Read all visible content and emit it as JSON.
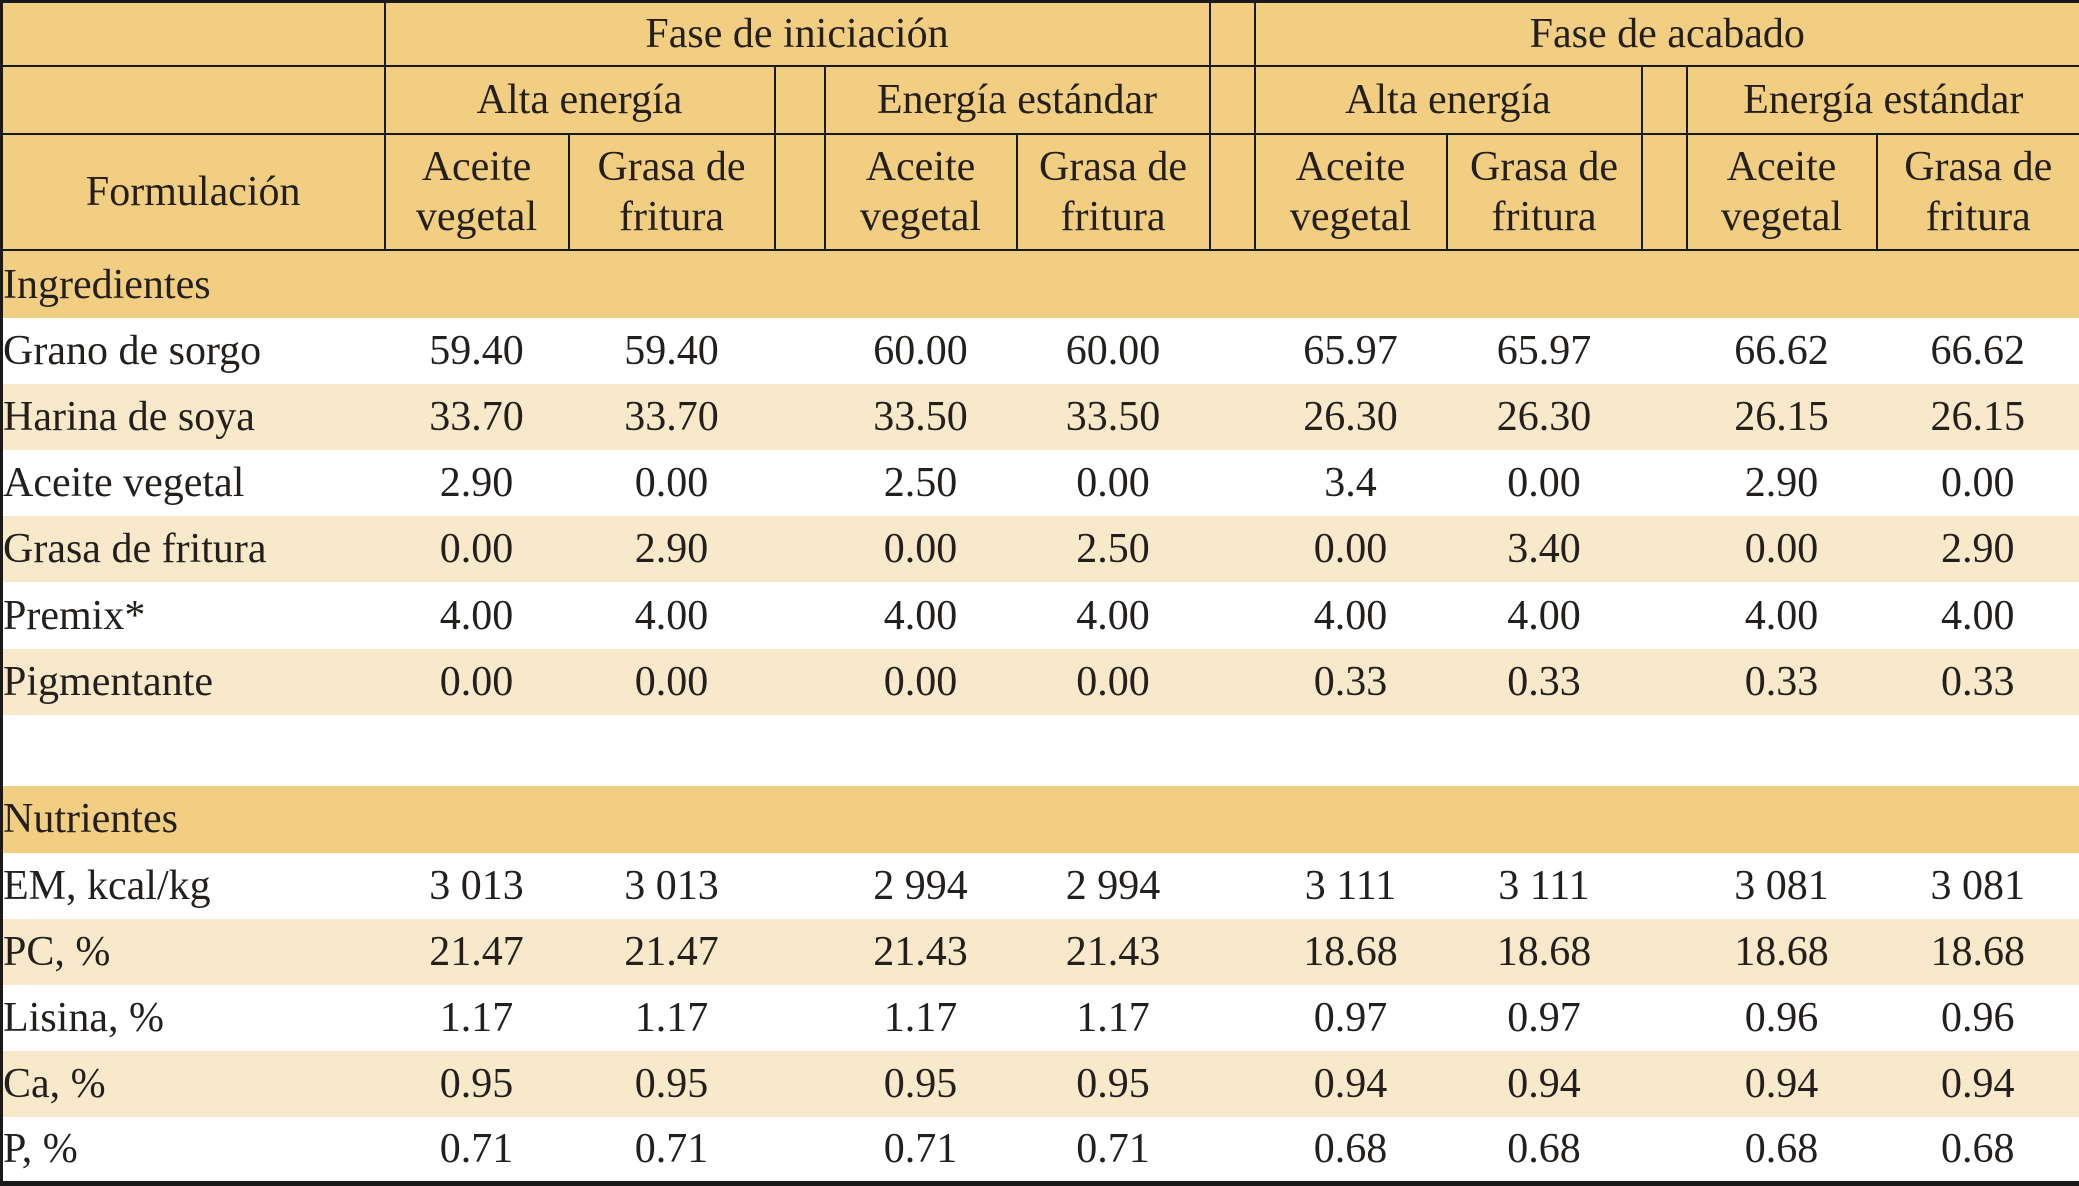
{
  "header": {
    "corner_label": "Formulación",
    "phases": [
      {
        "label": "Fase de iniciación",
        "energy_groups": [
          {
            "label": "Alta energía",
            "columns": [
              "Aceite vegetal",
              "Grasa de fritura"
            ]
          },
          {
            "label": "Energía estándar",
            "columns": [
              "Aceite vegetal",
              "Grasa de fritura"
            ]
          }
        ]
      },
      {
        "label": "Fase de acabado",
        "energy_groups": [
          {
            "label": "Alta energía",
            "columns": [
              "Aceite vegetal",
              "Grasa de fritura"
            ]
          },
          {
            "label": "Energía estándar",
            "columns": [
              "Aceite vegetal",
              "Grasa de fritura"
            ]
          }
        ]
      }
    ]
  },
  "body": {
    "sections": [
      {
        "title": "Ingredientes",
        "rows": [
          {
            "label": "Grano de sorgo",
            "values": [
              "59.40",
              "59.40",
              "60.00",
              "60.00",
              "65.97",
              "65.97",
              "66.62",
              "66.62"
            ]
          },
          {
            "label": "Harina de soya",
            "values": [
              "33.70",
              "33.70",
              "33.50",
              "33.50",
              "26.30",
              "26.30",
              "26.15",
              "26.15"
            ]
          },
          {
            "label": "Aceite vegetal",
            "values": [
              "2.90",
              "0.00",
              "2.50",
              "0.00",
              "3.4",
              "0.00",
              "2.90",
              "0.00"
            ]
          },
          {
            "label": "Grasa de fritura",
            "values": [
              "0.00",
              "2.90",
              "0.00",
              "2.50",
              "0.00",
              "3.40",
              "0.00",
              "2.90"
            ]
          },
          {
            "label": "Premix*",
            "values": [
              "4.00",
              "4.00",
              "4.00",
              "4.00",
              "4.00",
              "4.00",
              "4.00",
              "4.00"
            ]
          },
          {
            "label": "Pigmentante",
            "values": [
              "0.00",
              "0.00",
              "0.00",
              "0.00",
              "0.33",
              "0.33",
              "0.33",
              "0.33"
            ]
          }
        ]
      },
      {
        "title": "Nutrientes",
        "rows": [
          {
            "label": "EM, kcal/kg",
            "values": [
              "3 013",
              "3 013",
              "2 994",
              "2 994",
              "3 111",
              "3 111",
              "3 081",
              "3 081"
            ]
          },
          {
            "label": "PC, %",
            "values": [
              "21.47",
              "21.47",
              "21.43",
              "21.43",
              "18.68",
              "18.68",
              "18.68",
              "18.68"
            ]
          },
          {
            "label": "Lisina, %",
            "values": [
              "1.17",
              "1.17",
              "1.17",
              "1.17",
              "0.97",
              "0.97",
              "0.96",
              "0.96"
            ]
          },
          {
            "label": "Ca, %",
            "values": [
              "0.95",
              "0.95",
              "0.95",
              "0.95",
              "0.94",
              "0.94",
              "0.94",
              "0.94"
            ]
          },
          {
            "label": "P, %",
            "values": [
              "0.71",
              "0.71",
              "0.71",
              "0.71",
              "0.68",
              "0.68",
              "0.68",
              "0.68"
            ]
          }
        ]
      }
    ]
  },
  "colors": {
    "header_tan": "#F2CE82",
    "row_cream": "#F8E9CB",
    "row_white": "#FFFFFF",
    "border_black": "#1A1A1A",
    "text": "#231F1C"
  }
}
